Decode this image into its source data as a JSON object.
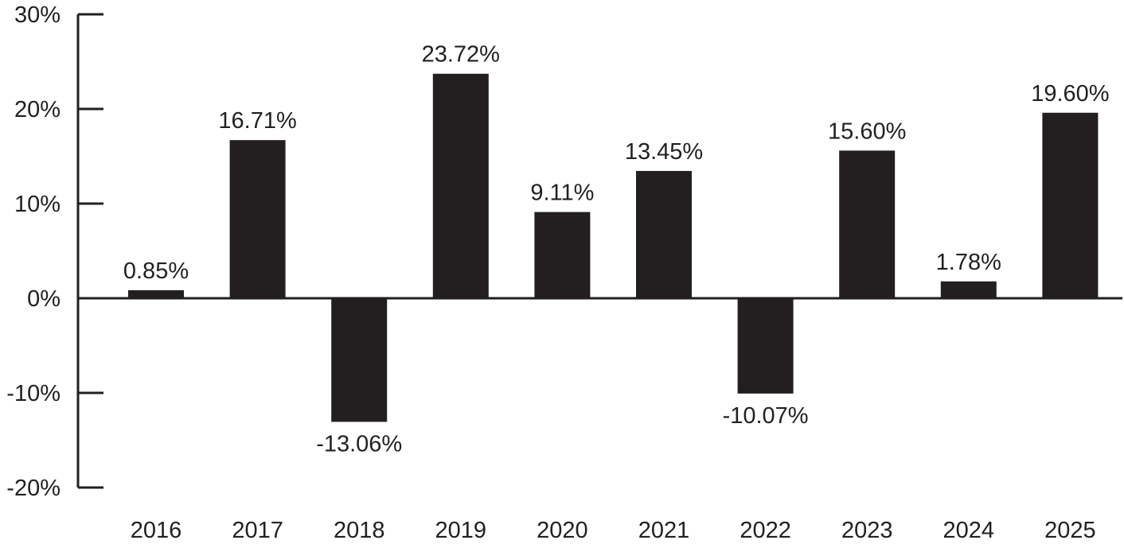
{
  "chart_data": {
    "type": "bar",
    "title": "",
    "xlabel": "",
    "ylabel": "",
    "categories": [
      "2016",
      "2017",
      "2018",
      "2019",
      "2020",
      "2021",
      "2022",
      "2023",
      "2024",
      "2025"
    ],
    "values": [
      0.85,
      16.71,
      -13.06,
      23.72,
      9.11,
      13.45,
      -10.07,
      15.6,
      1.78,
      19.6
    ],
    "data_labels": [
      "0.85%",
      "16.71%",
      "-13.06%",
      "23.72%",
      "9.11%",
      "13.45%",
      "-10.07%",
      "15.60%",
      "1.78%",
      "19.60%"
    ],
    "ylim": [
      -20,
      30
    ],
    "yticks": [
      30,
      20,
      10,
      0,
      -10,
      -20
    ],
    "ytick_labels": [
      "30%",
      "20%",
      "10%",
      "0%",
      "-10%",
      "-20%"
    ],
    "grid": false,
    "legend": "none",
    "bar_color": "#231f20"
  }
}
